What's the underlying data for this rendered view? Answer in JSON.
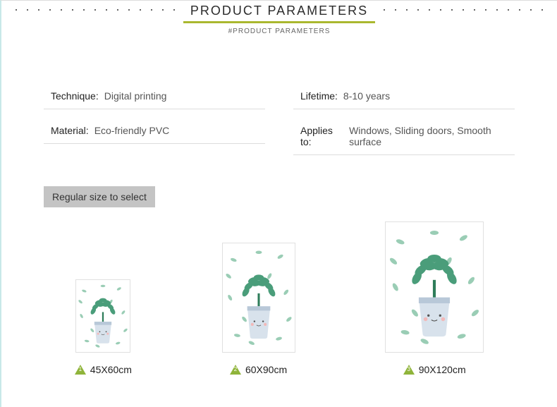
{
  "header": {
    "title": "PRODUCT PARAMETERS",
    "subtitle": "#PRODUCT PARAMETERS",
    "underline_color": "#aab82f"
  },
  "params": {
    "left": [
      {
        "label": "Technique:",
        "value": "Digital printing"
      },
      {
        "label": "Material:",
        "value": "Eco-friendly PVC"
      }
    ],
    "right": [
      {
        "label": "Lifetime:",
        "value": "8-10 years"
      },
      {
        "label": "Applies to:",
        "value": "Windows, Sliding doors, Smooth surface"
      }
    ]
  },
  "size_section": {
    "heading": "Regular size to select",
    "heading_bg": "#c4c4c4",
    "triangle_color": "#8fb43a",
    "items": [
      {
        "num": "1",
        "label": "45X60cm",
        "thumb_w": 78,
        "thumb_h": 104
      },
      {
        "num": "2",
        "label": "60X90cm",
        "thumb_w": 104,
        "thumb_h": 156
      },
      {
        "num": "3",
        "label": "90X120cm",
        "thumb_w": 140,
        "thumb_h": 186
      }
    ]
  },
  "plant_svg": {
    "leaf_color": "#4a9d7a",
    "leaf_dark": "#2e7d5a",
    "pot_color": "#d8e2ec",
    "pot_band": "#b8c8d8",
    "face_color": "#555",
    "blush": "#f2b8b8",
    "bg_leaf": "#6fb896"
  }
}
